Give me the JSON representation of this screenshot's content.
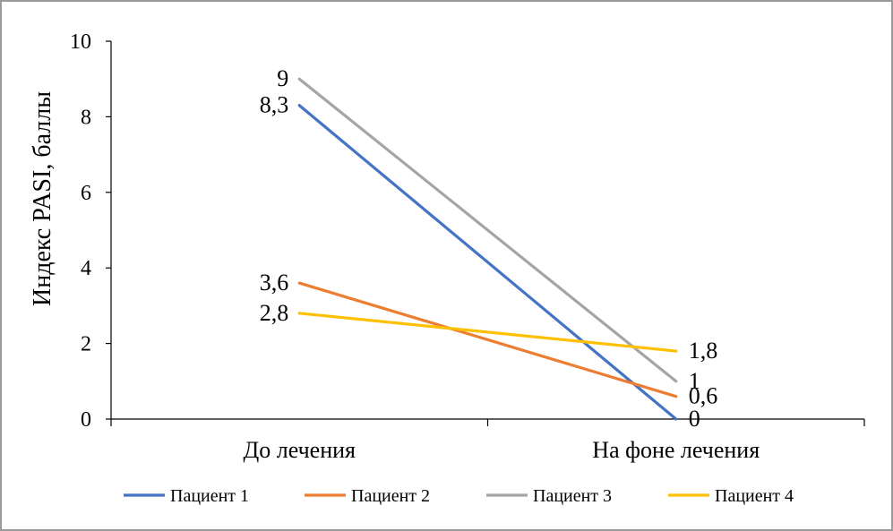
{
  "chart_data": {
    "type": "line",
    "title": "",
    "xlabel": "",
    "ylabel": "Индекс PASI, баллы",
    "ylim": [
      0,
      10
    ],
    "y_ticks": [
      "0",
      "2",
      "4",
      "6",
      "8",
      "10"
    ],
    "categories": [
      "До лечения",
      "На фоне лечения"
    ],
    "grid": false,
    "legend_position": "bottom",
    "series": [
      {
        "name": "Пациент 1",
        "color": "#4472C4",
        "values": [
          8.3,
          0
        ],
        "labels": [
          "8,3",
          "0"
        ]
      },
      {
        "name": "Пациент 2",
        "color": "#ED7D31",
        "values": [
          3.6,
          0.6
        ],
        "labels": [
          "3,6",
          "0,6"
        ]
      },
      {
        "name": "Пациент 3",
        "color": "#A5A5A5",
        "values": [
          9,
          1
        ],
        "labels": [
          "9",
          "1"
        ]
      },
      {
        "name": "Пациент 4",
        "color": "#FFC000",
        "values": [
          2.8,
          1.8
        ],
        "labels": [
          "2,8",
          "1,8"
        ]
      }
    ]
  }
}
